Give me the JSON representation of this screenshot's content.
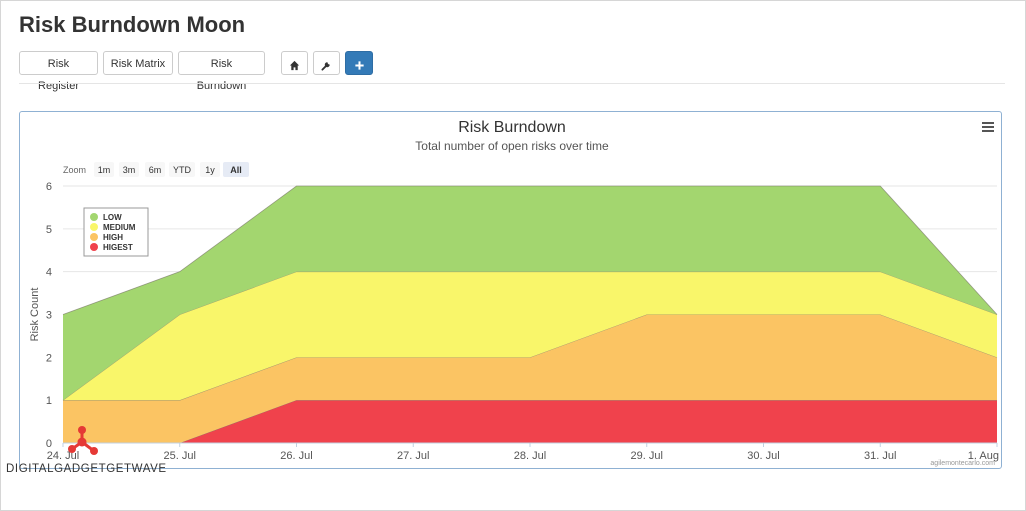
{
  "page": {
    "title": "Risk Burndown Moon"
  },
  "toolbar": {
    "buttons": [
      "Risk Register",
      "Risk Matrix",
      "Risk Burndown"
    ],
    "icons": [
      "home-icon",
      "wrench-icon",
      "plus-icon"
    ],
    "primary_color": "#337ab7"
  },
  "chart": {
    "menu_icon": "hamburger-icon",
    "zoom": {
      "label": "Zoom",
      "options": [
        "1m",
        "3m",
        "6m",
        "YTD",
        "1y",
        "All"
      ],
      "selected": "All"
    },
    "credit": "agilemontecarlo.com"
  },
  "chart_data": {
    "type": "area",
    "stacked": true,
    "title": "Risk Burndown",
    "subtitle": "Total number of open risks over time",
    "ylabel": "Risk Count",
    "xlabel": "",
    "ylim": [
      0,
      6
    ],
    "yticks": [
      "0",
      "1",
      "2",
      "3",
      "4",
      "5",
      "6"
    ],
    "x": [
      "24. Jul",
      "25. Jul",
      "26. Jul",
      "27. Jul",
      "28. Jul",
      "29. Jul",
      "30. Jul",
      "31. Jul",
      "1. Aug"
    ],
    "grid": true,
    "legend_position": "top-left",
    "series": [
      {
        "name": "HIGEST",
        "color": "#f0424c",
        "values": [
          0,
          0,
          1,
          1,
          1,
          1,
          1,
          1,
          1
        ]
      },
      {
        "name": "HIGH",
        "color": "#fbc463",
        "values": [
          1,
          1,
          1,
          1,
          1,
          2,
          2,
          2,
          1
        ]
      },
      {
        "name": "MEDIUM",
        "color": "#f9f66a",
        "values": [
          0,
          2,
          2,
          2,
          2,
          1,
          1,
          1,
          1
        ]
      },
      {
        "name": "LOW",
        "color": "#a3d66f",
        "values": [
          2,
          1,
          2,
          2,
          2,
          2,
          2,
          2,
          0
        ]
      }
    ]
  },
  "watermark": {
    "text": "DIGITALGADGETGETWAVE"
  }
}
